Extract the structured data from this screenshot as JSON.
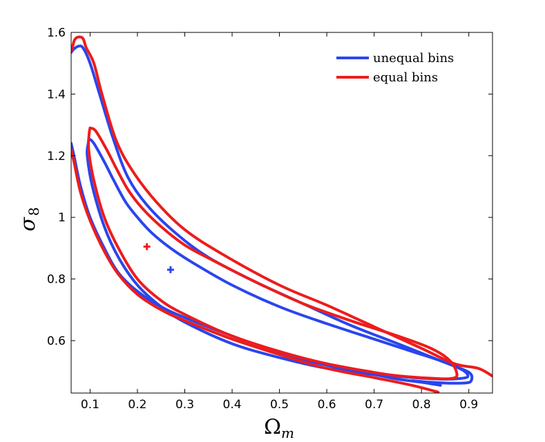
{
  "chart_data": {
    "type": "line",
    "xlabel": "Ω",
    "xlabel_sub": "m",
    "ylabel": "σ",
    "ylabel_sub": "8",
    "xlim": [
      0.06,
      0.95
    ],
    "ylim": [
      0.43,
      1.6
    ],
    "x_ticks": [
      0.1,
      0.2,
      0.3,
      0.4,
      0.5,
      0.6,
      0.7,
      0.8,
      0.9
    ],
    "x_tick_labels": [
      "0.1",
      "0.2",
      "0.3",
      "0.4",
      "0.5",
      "0.6",
      "0.7",
      "0.8",
      "0.9"
    ],
    "y_ticks": [
      0.6,
      0.8,
      1.0,
      1.2,
      1.4,
      1.6
    ],
    "y_tick_labels": [
      "0.6",
      "0.8",
      "1",
      "1.2",
      "1.4",
      "1.6"
    ],
    "grid": false,
    "legend_position": "top-right",
    "series": [
      {
        "name": "unequal bins",
        "color": "#2a45ee",
        "best_fit": [
          0.27,
          0.83
        ],
        "contours": [
          [
            [
              0.098,
              1.255
            ],
            [
              0.108,
              1.24
            ],
            [
              0.13,
              1.18
            ],
            [
              0.15,
              1.12
            ],
            [
              0.175,
              1.05
            ],
            [
              0.2,
              1.0
            ],
            [
              0.23,
              0.95
            ],
            [
              0.27,
              0.9
            ],
            [
              0.32,
              0.85
            ],
            [
              0.4,
              0.78
            ],
            [
              0.5,
              0.71
            ],
            [
              0.6,
              0.655
            ],
            [
              0.7,
              0.605
            ],
            [
              0.78,
              0.565
            ],
            [
              0.84,
              0.535
            ],
            [
              0.88,
              0.51
            ],
            [
              0.895,
              0.495
            ],
            [
              0.897,
              0.482
            ],
            [
              0.88,
              0.477
            ],
            [
              0.85,
              0.475
            ],
            [
              0.8,
              0.478
            ],
            [
              0.75,
              0.484
            ],
            [
              0.7,
              0.49
            ],
            [
              0.6,
              0.51
            ],
            [
              0.5,
              0.545
            ],
            [
              0.4,
              0.59
            ],
            [
              0.3,
              0.66
            ],
            [
              0.25,
              0.71
            ],
            [
              0.2,
              0.78
            ],
            [
              0.16,
              0.87
            ],
            [
              0.13,
              0.97
            ],
            [
              0.105,
              1.1
            ],
            [
              0.094,
              1.2
            ],
            [
              0.096,
              1.24
            ],
            [
              0.098,
              1.255
            ]
          ],
          [
            [
              0.06,
              1.535
            ],
            [
              0.065,
              1.545
            ],
            [
              0.075,
              1.555
            ],
            [
              0.085,
              1.55
            ],
            [
              0.1,
              1.5
            ],
            [
              0.12,
              1.4
            ],
            [
              0.15,
              1.25
            ],
            [
              0.18,
              1.13
            ],
            [
              0.22,
              1.04
            ],
            [
              0.28,
              0.95
            ],
            [
              0.35,
              0.87
            ],
            [
              0.45,
              0.79
            ],
            [
              0.55,
              0.72
            ],
            [
              0.65,
              0.65
            ],
            [
              0.75,
              0.59
            ],
            [
              0.84,
              0.535
            ],
            [
              0.89,
              0.505
            ],
            [
              0.905,
              0.49
            ],
            [
              0.905,
              0.47
            ],
            [
              0.895,
              0.463
            ],
            [
              0.86,
              0.462
            ],
            [
              0.82,
              0.465
            ],
            [
              0.78,
              0.47
            ]
          ],
          [
            [
              0.06,
              1.24
            ],
            [
              0.066,
              1.2
            ],
            [
              0.08,
              1.1
            ],
            [
              0.1,
              1.0
            ],
            [
              0.13,
              0.9
            ],
            [
              0.16,
              0.82
            ],
            [
              0.2,
              0.76
            ],
            [
              0.25,
              0.71
            ],
            [
              0.3,
              0.675
            ],
            [
              0.4,
              0.615
            ],
            [
              0.5,
              0.56
            ],
            [
              0.6,
              0.52
            ],
            [
              0.7,
              0.49
            ],
            [
              0.75,
              0.475
            ],
            [
              0.8,
              0.465
            ],
            [
              0.84,
              0.455
            ]
          ]
        ]
      },
      {
        "name": "equal bins",
        "color": "#ee1c1c",
        "best_fit": [
          0.22,
          0.905
        ],
        "contours": [
          [
            [
              0.1,
              1.29
            ],
            [
              0.112,
              1.28
            ],
            [
              0.135,
              1.22
            ],
            [
              0.155,
              1.16
            ],
            [
              0.18,
              1.09
            ],
            [
              0.21,
              1.03
            ],
            [
              0.25,
              0.97
            ],
            [
              0.3,
              0.91
            ],
            [
              0.36,
              0.86
            ],
            [
              0.45,
              0.79
            ],
            [
              0.55,
              0.72
            ],
            [
              0.65,
              0.665
            ],
            [
              0.75,
              0.615
            ],
            [
              0.82,
              0.575
            ],
            [
              0.86,
              0.535
            ],
            [
              0.875,
              0.49
            ],
            [
              0.862,
              0.477
            ],
            [
              0.82,
              0.478
            ],
            [
              0.75,
              0.486
            ],
            [
              0.7,
              0.497
            ],
            [
              0.6,
              0.525
            ],
            [
              0.5,
              0.565
            ],
            [
              0.4,
              0.615
            ],
            [
              0.3,
              0.685
            ],
            [
              0.25,
              0.73
            ],
            [
              0.2,
              0.8
            ],
            [
              0.16,
              0.9
            ],
            [
              0.13,
              1.0
            ],
            [
              0.108,
              1.12
            ],
            [
              0.097,
              1.22
            ],
            [
              0.098,
              1.27
            ],
            [
              0.1,
              1.29
            ]
          ],
          [
            [
              0.062,
              1.545
            ],
            [
              0.067,
              1.575
            ],
            [
              0.075,
              1.585
            ],
            [
              0.085,
              1.58
            ],
            [
              0.092,
              1.55
            ],
            [
              0.108,
              1.5
            ],
            [
              0.125,
              1.4
            ],
            [
              0.155,
              1.25
            ],
            [
              0.19,
              1.15
            ],
            [
              0.24,
              1.05
            ],
            [
              0.3,
              0.96
            ],
            [
              0.38,
              0.88
            ],
            [
              0.5,
              0.78
            ],
            [
              0.6,
              0.715
            ],
            [
              0.7,
              0.645
            ],
            [
              0.8,
              0.575
            ],
            [
              0.87,
              0.525
            ],
            [
              0.92,
              0.51
            ],
            [
              0.95,
              0.485
            ]
          ],
          [
            [
              0.06,
              1.22
            ],
            [
              0.066,
              1.18
            ],
            [
              0.08,
              1.08
            ],
            [
              0.1,
              0.99
            ],
            [
              0.13,
              0.89
            ],
            [
              0.16,
              0.815
            ],
            [
              0.2,
              0.75
            ],
            [
              0.25,
              0.7
            ],
            [
              0.3,
              0.665
            ],
            [
              0.4,
              0.605
            ],
            [
              0.5,
              0.555
            ],
            [
              0.6,
              0.51
            ],
            [
              0.7,
              0.48
            ],
            [
              0.78,
              0.455
            ],
            [
              0.835,
              0.433
            ]
          ]
        ]
      }
    ]
  }
}
